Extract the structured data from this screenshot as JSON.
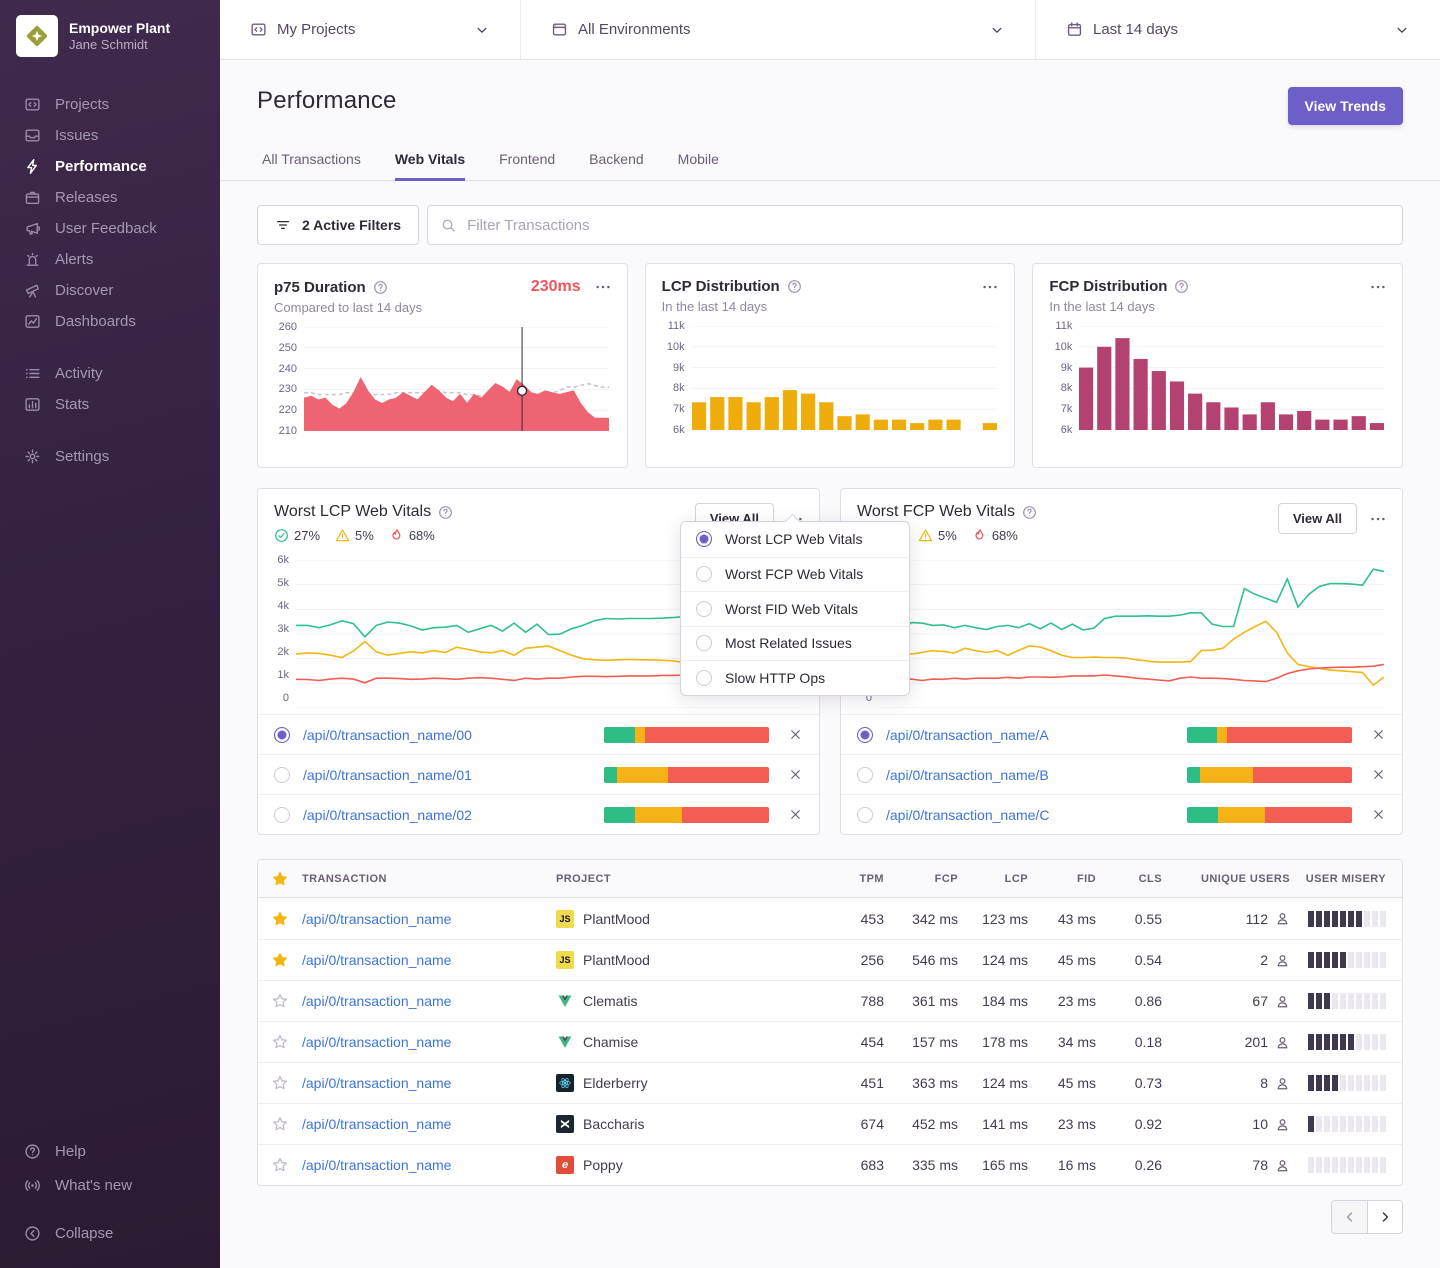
{
  "colors": {
    "accent": "#6c5fc7",
    "link": "#3d74db",
    "red": "#f2545b",
    "area_red": "#ef6472",
    "amber": "#f2b712",
    "bar_yellow": "#efac0d",
    "bar_magenta": "#b44271",
    "green": "#2fbf93",
    "seg_green": "#2ebd85",
    "seg_yellow": "#f5b216",
    "seg_red": "#f25d54",
    "misery_dark": "#3f3852",
    "grid": "#f3f1f6",
    "dashed": "#c9c3d4",
    "marker": "#2f2936"
  },
  "sidebar": {
    "org_name": "Empower Plant",
    "user_name": "Jane Schmidt",
    "items": [
      {
        "icon": "projects",
        "label": "Projects"
      },
      {
        "icon": "issues",
        "label": "Issues"
      },
      {
        "icon": "performance",
        "label": "Performance",
        "active": true
      },
      {
        "icon": "releases",
        "label": "Releases"
      },
      {
        "icon": "user-feedback",
        "label": "User Feedback"
      },
      {
        "icon": "alerts",
        "label": "Alerts"
      },
      {
        "icon": "discover",
        "label": "Discover"
      },
      {
        "icon": "dashboards",
        "label": "Dashboards"
      }
    ],
    "secondary": [
      {
        "icon": "activity",
        "label": "Activity"
      },
      {
        "icon": "stats",
        "label": "Stats"
      }
    ],
    "tertiary": [
      {
        "icon": "settings",
        "label": "Settings"
      }
    ],
    "footer": [
      {
        "icon": "help",
        "label": "Help"
      },
      {
        "icon": "whats-new",
        "label": "What's new"
      }
    ],
    "collapse_label": "Collapse"
  },
  "topbar": {
    "selectors": [
      {
        "icon": "projects",
        "label": "My Projects"
      },
      {
        "icon": "window",
        "label": "All Environments"
      },
      {
        "icon": "calendar",
        "label": "Last 14 days"
      }
    ]
  },
  "page": {
    "title": "Performance",
    "view_trends_label": "View Trends",
    "tabs": [
      "All Transactions",
      "Web Vitals",
      "Frontend",
      "Backend",
      "Mobile"
    ],
    "active_tab": "Web Vitals",
    "filter_button": "2 Active Filters",
    "search_placeholder": "Filter Transactions"
  },
  "chart_data": [
    {
      "id": "p75",
      "type": "area",
      "title": "p75 Duration",
      "subtitle": "Compared to last 14 days",
      "value_label": "230ms",
      "yticks": [
        "260",
        "250",
        "240",
        "230",
        "220",
        "210"
      ],
      "ylim": [
        207,
        264
      ],
      "series": [
        {
          "name": "comparison",
          "color": "#c9c3d4",
          "dashed": true,
          "values": [
            228,
            228,
            227,
            227,
            227,
            227,
            228,
            228,
            228,
            227,
            227,
            227,
            227,
            228,
            228,
            228,
            228,
            228,
            229,
            229,
            228,
            228,
            228,
            227,
            227,
            226,
            226,
            226,
            226,
            226,
            226,
            227,
            227,
            227,
            227,
            228,
            229,
            231,
            231,
            232,
            233,
            232,
            231,
            231
          ]
        },
        {
          "name": "p75",
          "color": "#ef6472",
          "fill": true,
          "values": [
            225,
            226,
            224,
            225,
            221,
            219,
            222,
            228,
            236,
            229,
            224,
            222,
            224,
            225,
            228,
            226,
            224,
            228,
            232,
            229,
            225,
            223,
            227,
            222,
            227,
            225,
            229,
            233,
            231,
            228,
            235,
            232,
            228,
            227,
            229,
            228,
            227,
            228,
            229,
            222,
            217,
            214,
            214,
            214
          ]
        }
      ],
      "marker": {
        "x": 0.715,
        "value": 229
      }
    },
    {
      "id": "lcp_dist",
      "type": "bar",
      "title": "LCP Distribution",
      "subtitle": "In the last 14 days",
      "yticks": [
        "11k",
        "10k",
        "9k",
        "8k",
        "7k",
        "6k"
      ],
      "ylim": [
        5.7,
        11.7
      ],
      "color": "#efac0d",
      "values": [
        7.3,
        7.6,
        7.6,
        7.3,
        7.6,
        8.0,
        7.8,
        7.3,
        6.5,
        6.6,
        6.3,
        6.3,
        6.1,
        6.3,
        6.3,
        null,
        6.1
      ]
    },
    {
      "id": "fcp_dist",
      "type": "bar",
      "title": "FCP Distribution",
      "subtitle": "In the last 14 days",
      "yticks": [
        "11k",
        "10k",
        "9k",
        "8k",
        "7k",
        "6k"
      ],
      "ylim": [
        5.7,
        11.7
      ],
      "color": "#b44271",
      "values": [
        9.3,
        10.5,
        11.0,
        9.8,
        9.1,
        8.5,
        7.8,
        7.3,
        7.0,
        6.6,
        7.3,
        6.6,
        6.8,
        6.3,
        6.3,
        6.5,
        6.1
      ]
    },
    {
      "id": "worst_lcp",
      "type": "line",
      "title": "Worst LCP Web Vitals",
      "badges": [
        {
          "icon": "check-circle",
          "value": "27%"
        },
        {
          "icon": "warning",
          "value": "5%"
        },
        {
          "icon": "fire",
          "value": "68%"
        }
      ],
      "view_all_label": "View All",
      "yticks": [
        "6k",
        "5k",
        "4k",
        "3k",
        "2k",
        "1k",
        "0"
      ],
      "ylim": [
        0,
        6.45
      ],
      "series": [
        {
          "name": "good",
          "color": "#2fbf93",
          "values": [
            3.6,
            3.6,
            3.5,
            3.62,
            3.8,
            3.68,
            3.1,
            3.6,
            3.75,
            3.7,
            3.58,
            3.4,
            3.5,
            3.52,
            3.6,
            3.3,
            3.45,
            3.6,
            3.35,
            3.7,
            3.3,
            3.65,
            3.2,
            3.22,
            3.45,
            3.6,
            3.8,
            3.9,
            3.88,
            3.9,
            3.9,
            3.9,
            3.92,
            3.95,
            4.0,
            4.02,
            4.08,
            4.05,
            3.6,
            3.5,
            3.42,
            5.25,
            5.05,
            4.8,
            4.62
          ]
        },
        {
          "name": "meh",
          "color": "#f2b712",
          "values": [
            2.35,
            2.4,
            2.38,
            2.3,
            2.2,
            2.48,
            2.9,
            2.45,
            2.3,
            2.38,
            2.45,
            2.4,
            2.5,
            2.42,
            2.65,
            2.55,
            2.45,
            2.4,
            2.5,
            2.3,
            2.6,
            2.65,
            2.7,
            2.5,
            2.3,
            2.15,
            2.1,
            2.08,
            2.1,
            2.12,
            2.1,
            2.1,
            2.08,
            2.05,
            1.95,
            1.95,
            2.35,
            2.45,
            2.5,
            2.55,
            3.0,
            3.2,
            3.3,
            3.42,
            3.5
          ]
        },
        {
          "name": "poor",
          "color": "#f25d54",
          "values": [
            1.25,
            1.24,
            1.2,
            1.26,
            1.3,
            1.26,
            1.1,
            1.3,
            1.3,
            1.28,
            1.25,
            1.26,
            1.3,
            1.28,
            1.25,
            1.3,
            1.32,
            1.3,
            1.25,
            1.2,
            1.3,
            1.26,
            1.3,
            1.3,
            1.35,
            1.38,
            1.38,
            1.37,
            1.38,
            1.4,
            1.4,
            1.4,
            1.42,
            1.42,
            1.44,
            1.45,
            1.35,
            1.3,
            1.26,
            1.12,
            1.06,
            1.02,
            0.98,
            0.95,
            0.93
          ]
        }
      ],
      "list": [
        {
          "selected": true,
          "label": "/api/0/transaction_name/00",
          "segments": [
            19,
            6,
            75
          ]
        },
        {
          "selected": false,
          "label": "/api/0/transaction_name/01",
          "segments": [
            8,
            31,
            61
          ]
        },
        {
          "selected": false,
          "label": "/api/0/transaction_name/02",
          "segments": [
            19,
            28,
            53
          ]
        }
      ]
    },
    {
      "id": "worst_fcp",
      "type": "line",
      "title": "Worst FCP Web Vitals",
      "badges": [
        {
          "icon": "check-circle",
          "value": "27%"
        },
        {
          "icon": "warning",
          "value": "5%"
        },
        {
          "icon": "fire",
          "value": "68%"
        }
      ],
      "view_all_label": "View All",
      "yticks": [
        "6k",
        "5k",
        "4k",
        "3k",
        "2k",
        "1k",
        "0"
      ],
      "ylim": [
        0,
        6.45
      ],
      "series": [
        {
          "name": "good",
          "color": "#2fbf93",
          "values": [
            3.8,
            3.55,
            3.3,
            3.72,
            3.7,
            3.6,
            3.62,
            3.5,
            3.6,
            3.5,
            3.42,
            3.55,
            3.6,
            3.5,
            3.68,
            3.45,
            3.7,
            3.42,
            3.65,
            3.4,
            3.48,
            3.9,
            4.0,
            4.0,
            4.0,
            4.02,
            4.0,
            4.0,
            4.05,
            4.15,
            4.15,
            3.65,
            3.55,
            3.55,
            5.2,
            4.95,
            4.78,
            4.6,
            5.62,
            4.4,
            4.95,
            5.3,
            5.42,
            5.42,
            5.4,
            5.35,
            6.05,
            5.95
          ]
        },
        {
          "name": "meh",
          "color": "#f2b712",
          "values": [
            2.4,
            2.7,
            2.3,
            2.35,
            2.42,
            2.5,
            2.46,
            2.4,
            2.6,
            2.5,
            2.42,
            2.5,
            2.3,
            2.52,
            2.7,
            2.66,
            2.5,
            2.3,
            2.2,
            2.2,
            2.22,
            2.2,
            2.2,
            2.18,
            2.1,
            2.05,
            2.0,
            2.0,
            2.0,
            2.02,
            2.5,
            2.52,
            2.6,
            3.0,
            3.3,
            3.55,
            3.78,
            3.3,
            2.4,
            1.9,
            1.8,
            1.72,
            1.65,
            1.62,
            1.58,
            1.55,
            1.0,
            1.35
          ]
        },
        {
          "name": "poor",
          "color": "#f25d54",
          "values": [
            1.2,
            1.16,
            1.25,
            1.26,
            1.2,
            1.26,
            1.25,
            1.3,
            1.26,
            1.3,
            1.3,
            1.3,
            1.34,
            1.3,
            1.35,
            1.35,
            1.34,
            1.36,
            1.4,
            1.4,
            1.4,
            1.44,
            1.4,
            1.36,
            1.3,
            1.26,
            1.22,
            1.18,
            1.3,
            1.35,
            1.3,
            1.3,
            1.28,
            1.25,
            1.2,
            1.18,
            1.15,
            1.3,
            1.5,
            1.62,
            1.7,
            1.74,
            1.76,
            1.78,
            1.78,
            1.8,
            1.82,
            1.9
          ]
        }
      ],
      "list": [
        {
          "selected": true,
          "label": "/api/0/transaction_name/A",
          "segments": [
            18,
            6,
            76
          ]
        },
        {
          "selected": false,
          "label": "/api/0/transaction_name/B",
          "segments": [
            8,
            32,
            60
          ]
        },
        {
          "selected": false,
          "label": "/api/0/transaction_name/C",
          "segments": [
            19,
            28,
            53
          ]
        }
      ]
    }
  ],
  "dropdown": {
    "items": [
      "Worst LCP Web Vitals",
      "Worst FCP Web Vitals",
      "Worst FID Web Vitals",
      "Most Related Issues",
      "Slow HTTP Ops"
    ],
    "selected_index": 0
  },
  "table": {
    "columns": [
      "TRANSACTION",
      "PROJECT",
      "TPM",
      "FCP",
      "LCP",
      "FID",
      "CLS",
      "UNIQUE USERS",
      "USER MISERY"
    ],
    "misery_total": 10,
    "rows": [
      {
        "starred": true,
        "transaction": "/api/0/transaction_name",
        "project": "PlantMood",
        "platform": "js",
        "tpm": "453",
        "fcp": "342 ms",
        "lcp": "123 ms",
        "fid": "43 ms",
        "cls": "0.55",
        "users": "112",
        "misery": 7
      },
      {
        "starred": true,
        "transaction": "/api/0/transaction_name",
        "project": "PlantMood",
        "platform": "js",
        "tpm": "256",
        "fcp": "546 ms",
        "lcp": "124 ms",
        "fid": "45 ms",
        "cls": "0.54",
        "users": "2",
        "misery": 5
      },
      {
        "starred": false,
        "transaction": "/api/0/transaction_name",
        "project": "Clematis",
        "platform": "vue",
        "tpm": "788",
        "fcp": "361 ms",
        "lcp": "184 ms",
        "fid": "23 ms",
        "cls": "0.86",
        "users": "67",
        "misery": 3
      },
      {
        "starred": false,
        "transaction": "/api/0/transaction_name",
        "project": "Chamise",
        "platform": "vue",
        "tpm": "454",
        "fcp": "157 ms",
        "lcp": "178 ms",
        "fid": "34 ms",
        "cls": "0.18",
        "users": "201",
        "misery": 6
      },
      {
        "starred": false,
        "transaction": "/api/0/transaction_name",
        "project": "Elderberry",
        "platform": "react",
        "tpm": "451",
        "fcp": "363 ms",
        "lcp": "124 ms",
        "fid": "45 ms",
        "cls": "0.73",
        "users": "8",
        "misery": 4
      },
      {
        "starred": false,
        "transaction": "/api/0/transaction_name",
        "project": "Baccharis",
        "platform": "x",
        "tpm": "674",
        "fcp": "452 ms",
        "lcp": "141 ms",
        "fid": "23 ms",
        "cls": "0.92",
        "users": "10",
        "misery": 1
      },
      {
        "starred": false,
        "transaction": "/api/0/transaction_name",
        "project": "Poppy",
        "platform": "ember",
        "tpm": "683",
        "fcp": "335 ms",
        "lcp": "165 ms",
        "fid": "16 ms",
        "cls": "0.26",
        "users": "78",
        "misery": 0
      }
    ]
  },
  "pagination": {
    "prev_disabled": true
  }
}
